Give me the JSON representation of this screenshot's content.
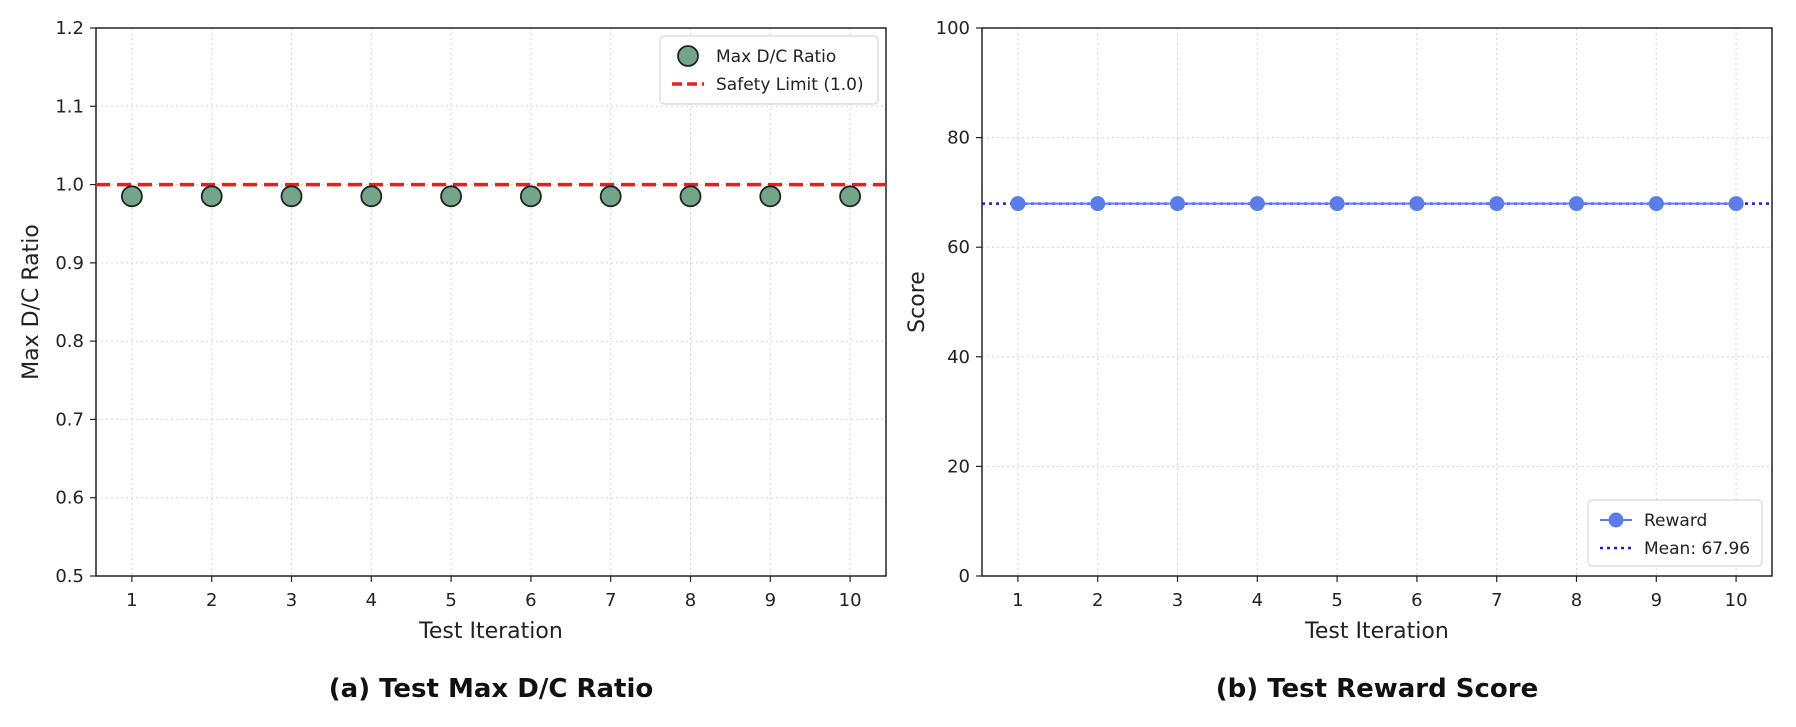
{
  "chart_data": [
    {
      "type": "scatter",
      "caption": "(a) Test Max D/C Ratio",
      "xlabel": "Test Iteration",
      "ylabel": "Max D/C Ratio",
      "xlim": [
        0.55,
        10.45
      ],
      "ylim": [
        0.5,
        1.2
      ],
      "x_ticks": [
        1,
        2,
        3,
        4,
        5,
        6,
        7,
        8,
        9,
        10
      ],
      "y_ticks": [
        "0.5",
        "0.6",
        "0.7",
        "0.8",
        "0.9",
        "1.0",
        "1.1",
        "1.2"
      ],
      "grid": true,
      "legend_position": "top-right",
      "series": [
        {
          "name": "Max D/C Ratio",
          "marker": "circle",
          "color": "#74a48a",
          "edge_color": "#222222",
          "x": [
            1,
            2,
            3,
            4,
            5,
            6,
            7,
            8,
            9,
            10
          ],
          "y": [
            0.985,
            0.985,
            0.985,
            0.985,
            0.985,
            0.985,
            0.985,
            0.985,
            0.985,
            0.985
          ]
        }
      ],
      "reference_lines": [
        {
          "name": "Safety Limit (1.0)",
          "y": 1.0,
          "style": "dashed",
          "color": "#e8201b"
        }
      ]
    },
    {
      "type": "line",
      "caption": "(b) Test Reward Score",
      "xlabel": "Test Iteration",
      "ylabel": "Score",
      "xlim": [
        0.55,
        10.45
      ],
      "ylim": [
        0,
        100
      ],
      "x_ticks": [
        1,
        2,
        3,
        4,
        5,
        6,
        7,
        8,
        9,
        10
      ],
      "y_ticks": [
        "0",
        "20",
        "40",
        "60",
        "80",
        "100"
      ],
      "grid": true,
      "legend_position": "bottom-right",
      "series": [
        {
          "name": "Reward",
          "marker": "circle",
          "color": "#5a7de6",
          "x": [
            1,
            2,
            3,
            4,
            5,
            6,
            7,
            8,
            9,
            10
          ],
          "y": [
            67.96,
            67.96,
            67.96,
            67.96,
            67.96,
            67.96,
            67.96,
            67.96,
            67.96,
            67.96
          ]
        }
      ],
      "reference_lines": [
        {
          "name": "Mean: 67.96",
          "y": 67.96,
          "style": "dotted",
          "color": "#1a1adb"
        }
      ]
    }
  ]
}
